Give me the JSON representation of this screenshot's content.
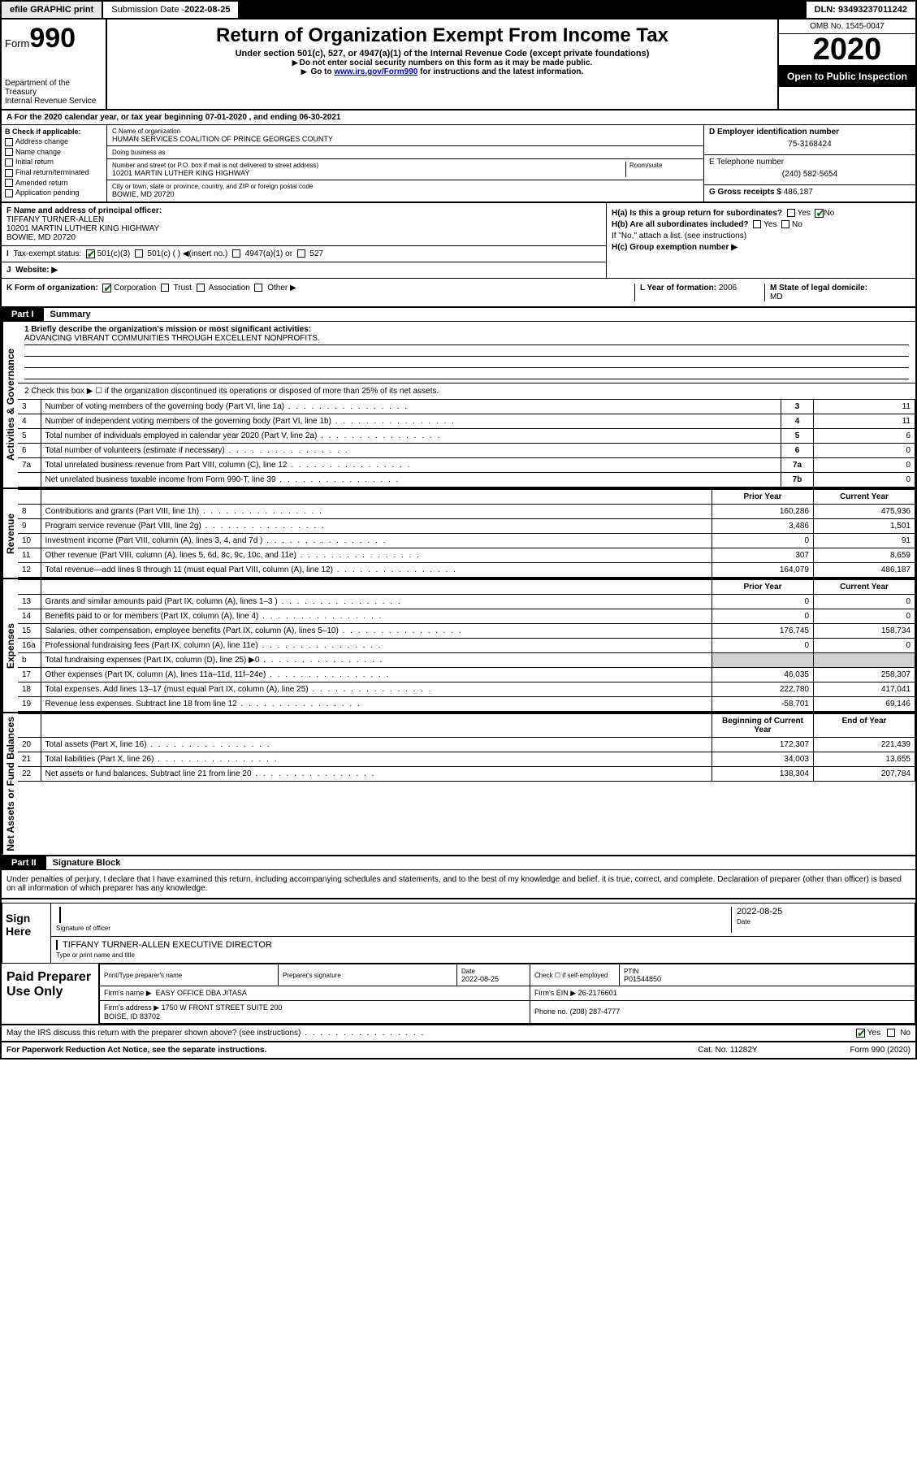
{
  "topbar": {
    "efile": "efile GRAPHIC print",
    "subdate_label": "Submission Date - ",
    "subdate": "2022-08-25",
    "dln_label": "DLN: ",
    "dln": "93493237011242"
  },
  "header": {
    "form_label": "Form",
    "form_no": "990",
    "dept": "Department of the Treasury\nInternal Revenue Service",
    "title": "Return of Organization Exempt From Income Tax",
    "sub1": "Under section 501(c), 527, or 4947(a)(1) of the Internal Revenue Code (except private foundations)",
    "sub2": "Do not enter social security numbers on this form as it may be made public.",
    "sub3_a": "Go to ",
    "sub3_link": "www.irs.gov/Form990",
    "sub3_b": " for instructions and the latest information.",
    "omb": "OMB No. 1545-0047",
    "year": "2020",
    "open": "Open to Public Inspection"
  },
  "period": "For the 2020 calendar year, or tax year beginning 07-01-2020   , and ending 06-30-2021",
  "boxB": {
    "title": "B Check if applicable:",
    "items": [
      "Address change",
      "Name change",
      "Initial return",
      "Final return/terminated",
      "Amended return",
      "Application pending"
    ]
  },
  "boxC": {
    "name_label": "C Name of organization",
    "name": "HUMAN SERVICES COALITION OF PRINCE GEORGES COUNTY",
    "dba_label": "Doing business as",
    "dba": "",
    "addr_label": "Number and street (or P.O. box if mail is not delivered to street address)",
    "room_label": "Room/suite",
    "addr": "10201 MARTIN LUTHER KING HIGHWAY",
    "city_label": "City or town, state or province, country, and ZIP or foreign postal code",
    "city": "BOWIE, MD  20720"
  },
  "boxDE": {
    "d_label": "D Employer identification number",
    "d_val": "75-3168424",
    "e_label": "E Telephone number",
    "e_val": "(240) 582-5654",
    "g_label": "G Gross receipts $ ",
    "g_val": "486,187"
  },
  "boxF": {
    "label": "F Name and address of principal officer:",
    "name": "TIFFANY TURNER-ALLEN",
    "addr1": "10201 MARTIN LUTHER KING HIGHWAY",
    "addr2": "BOWIE, MD  20720"
  },
  "boxH": {
    "a": "H(a)  Is this a group return for subordinates?",
    "b": "H(b)  Are all subordinates included?",
    "b_note": "If \"No,\" attach a list. (see instructions)",
    "c": "H(c)  Group exemption number ▶",
    "yes": "Yes",
    "no": "No"
  },
  "boxI": {
    "label": "Tax-exempt status:",
    "opts": [
      "501(c)(3)",
      "501(c) ( ) ◀(insert no.)",
      "4947(a)(1) or",
      "527"
    ]
  },
  "boxJ": {
    "label": "Website: ▶",
    "val": ""
  },
  "boxK": {
    "label": "K Form of organization:",
    "opts": [
      "Corporation",
      "Trust",
      "Association",
      "Other ▶"
    ]
  },
  "boxL": {
    "label": "L Year of formation: ",
    "val": "2006"
  },
  "boxM": {
    "label": "M State of legal domicile:",
    "val": "MD"
  },
  "part1": {
    "hdr": "Part I",
    "title": "Summary",
    "l1_label": "1  Briefly describe the organization's mission or most significant activities:",
    "l1_val": "ADVANCING VIBRANT COMMUNITIES THROUGH EXCELLENT NONPROFITS.",
    "l2": "2   Check this box ▶ ☐  if the organization discontinued its operations or disposed of more than 25% of its net assets.",
    "rows_gov": [
      {
        "n": "3",
        "desc": "Number of voting members of the governing body (Part VI, line 1a)",
        "box": "3",
        "val": "11"
      },
      {
        "n": "4",
        "desc": "Number of independent voting members of the governing body (Part VI, line 1b)",
        "box": "4",
        "val": "11"
      },
      {
        "n": "5",
        "desc": "Total number of individuals employed in calendar year 2020 (Part V, line 2a)",
        "box": "5",
        "val": "6"
      },
      {
        "n": "6",
        "desc": "Total number of volunteers (estimate if necessary)",
        "box": "6",
        "val": "0"
      },
      {
        "n": "7a",
        "desc": "Total unrelated business revenue from Part VIII, column (C), line 12",
        "box": "7a",
        "val": "0"
      },
      {
        "n": "",
        "desc": "Net unrelated business taxable income from Form 990-T, line 39",
        "box": "7b",
        "val": "0"
      }
    ],
    "col_prior": "Prior Year",
    "col_current": "Current Year",
    "rows_rev": [
      {
        "n": "8",
        "desc": "Contributions and grants (Part VIII, line 1h)",
        "p": "160,286",
        "c": "475,936"
      },
      {
        "n": "9",
        "desc": "Program service revenue (Part VIII, line 2g)",
        "p": "3,486",
        "c": "1,501"
      },
      {
        "n": "10",
        "desc": "Investment income (Part VIII, column (A), lines 3, 4, and 7d )",
        "p": "0",
        "c": "91"
      },
      {
        "n": "11",
        "desc": "Other revenue (Part VIII, column (A), lines 5, 6d, 8c, 9c, 10c, and 11e)",
        "p": "307",
        "c": "8,659"
      },
      {
        "n": "12",
        "desc": "Total revenue—add lines 8 through 11 (must equal Part VIII, column (A), line 12)",
        "p": "164,079",
        "c": "486,187"
      }
    ],
    "rows_exp": [
      {
        "n": "13",
        "desc": "Grants and similar amounts paid (Part IX, column (A), lines 1–3 )",
        "p": "0",
        "c": "0"
      },
      {
        "n": "14",
        "desc": "Benefits paid to or for members (Part IX, column (A), line 4)",
        "p": "0",
        "c": "0"
      },
      {
        "n": "15",
        "desc": "Salaries, other compensation, employee benefits (Part IX, column (A), lines 5–10)",
        "p": "176,745",
        "c": "158,734"
      },
      {
        "n": "16a",
        "desc": "Professional fundraising fees (Part IX, column (A), line 11e)",
        "p": "0",
        "c": "0"
      },
      {
        "n": "b",
        "desc": "Total fundraising expenses (Part IX, column (D), line 25) ▶0",
        "p": "",
        "c": "",
        "grey": true
      },
      {
        "n": "17",
        "desc": "Other expenses (Part IX, column (A), lines 11a–11d, 11f–24e)",
        "p": "46,035",
        "c": "258,307"
      },
      {
        "n": "18",
        "desc": "Total expenses. Add lines 13–17 (must equal Part IX, column (A), line 25)",
        "p": "222,780",
        "c": "417,041"
      },
      {
        "n": "19",
        "desc": "Revenue less expenses. Subtract line 18 from line 12",
        "p": "-58,701",
        "c": "69,146"
      }
    ],
    "col_begin": "Beginning of Current Year",
    "col_end": "End of Year",
    "rows_net": [
      {
        "n": "20",
        "desc": "Total assets (Part X, line 16)",
        "p": "172,307",
        "c": "221,439"
      },
      {
        "n": "21",
        "desc": "Total liabilities (Part X, line 26)",
        "p": "34,003",
        "c": "13,655"
      },
      {
        "n": "22",
        "desc": "Net assets or fund balances. Subtract line 21 from line 20",
        "p": "138,304",
        "c": "207,784"
      }
    ]
  },
  "vtabs": {
    "gov": "Activities & Governance",
    "rev": "Revenue",
    "exp": "Expenses",
    "net": "Net Assets or Fund Balances"
  },
  "part2": {
    "hdr": "Part II",
    "title": "Signature Block",
    "decl": "Under penalties of perjury, I declare that I have examined this return, including accompanying schedules and statements, and to the best of my knowledge and belief, it is true, correct, and complete. Declaration of preparer (other than officer) is based on all information of which preparer has any knowledge.",
    "sign_here": "Sign Here",
    "sig_officer": "Signature of officer",
    "sig_date": "2022-08-25",
    "date_label": "Date",
    "name_title": "TIFFANY TURNER-ALLEN  EXECUTIVE DIRECTOR",
    "name_title_label": "Type or print name and title"
  },
  "prep": {
    "label": "Paid Preparer Use Only",
    "h1": "Print/Type preparer's name",
    "h2": "Preparer's signature",
    "h3": "Date",
    "h3v": "2022-08-25",
    "h4": "Check ☐ if self-employed",
    "h5": "PTIN",
    "h5v": "P01544850",
    "firm_name_l": "Firm's name   ▶",
    "firm_name": "EASY OFFICE DBA JITASA",
    "firm_ein_l": "Firm's EIN ▶",
    "firm_ein": "26-2176601",
    "firm_addr_l": "Firm's address ▶",
    "firm_addr": "1750 W FRONT STREET SUITE 200\nBOISE, ID  83702",
    "phone_l": "Phone no.",
    "phone": "(208) 287-4777",
    "discuss": "May the IRS discuss this return with the preparer shown above? (see instructions)",
    "yes": "Yes",
    "no": "No"
  },
  "footer": {
    "l": "For Paperwork Reduction Act Notice, see the separate instructions.",
    "m": "Cat. No. 11282Y",
    "r": "Form 990 (2020)"
  },
  "colors": {
    "link": "#0000cc",
    "black": "#000000",
    "grey": "#d0d0d0",
    "btn_bg": "#e8e8e8"
  }
}
